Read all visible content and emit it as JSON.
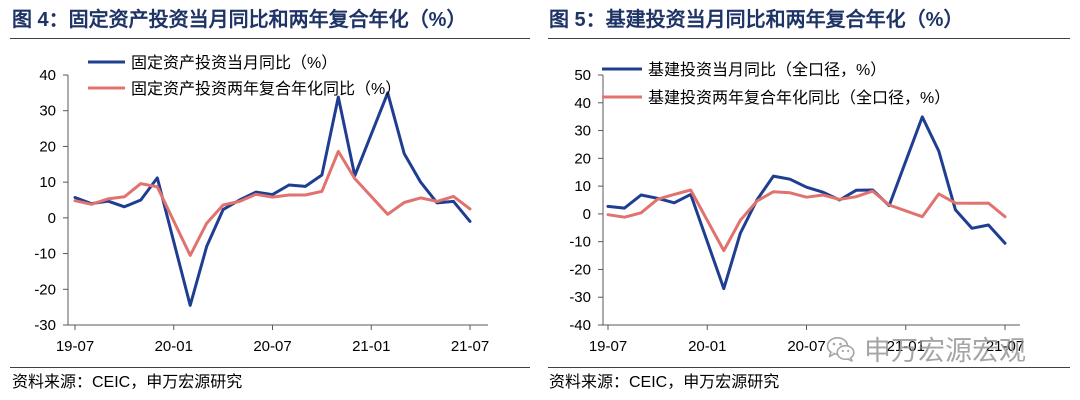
{
  "colors": {
    "title": "#1e3366",
    "axis": "#595959",
    "blue_series": "#1f3e92",
    "red_series": "#e1736f",
    "watermark": "#8c8c8c"
  },
  "chart_data": [
    {
      "type": "line",
      "title": "图 4：固定资产投资当月同比和两年复合年化（%）",
      "source": "资料来源：CEIC，申万宏源研究",
      "x": [
        "19-07",
        "19-08",
        "19-09",
        "19-10",
        "19-11",
        "19-12",
        "20-01",
        "20-02",
        "20-03",
        "20-04",
        "20-05",
        "20-06",
        "20-07",
        "20-08",
        "20-09",
        "20-10",
        "20-11",
        "20-12",
        "21-01",
        "21-02",
        "21-03",
        "21-04",
        "21-05",
        "21-06",
        "21-07"
      ],
      "x_tick_labels": [
        "19-07",
        "20-01",
        "20-07",
        "21-01",
        "21-07"
      ],
      "ylim": [
        -30,
        40
      ],
      "y_ticks": [
        40,
        30,
        20,
        10,
        0,
        -10,
        -20,
        -30
      ],
      "grid": false,
      "legend": "top-left",
      "series": [
        {
          "name": "固定资产投资当月同比（%）",
          "color": "#1f3e92",
          "values": [
            5.7,
            4.0,
            4.7,
            3.1,
            5.0,
            11.2,
            null,
            -24.5,
            -8.0,
            2.3,
            5.0,
            7.2,
            6.5,
            9.2,
            8.8,
            12.0,
            33.8,
            11.8,
            null,
            35.0,
            18.0,
            10.0,
            4.2,
            4.6,
            -1.0
          ]
        },
        {
          "name": "固定资产投资两年复合年化同比（%）",
          "color": "#e1736f",
          "values": [
            4.8,
            3.8,
            5.3,
            5.9,
            9.6,
            8.7,
            null,
            -10.5,
            -1.5,
            3.6,
            4.6,
            6.6,
            5.8,
            6.4,
            6.4,
            7.4,
            18.6,
            11.0,
            null,
            1.0,
            4.3,
            5.6,
            4.6,
            6.0,
            2.5
          ]
        }
      ]
    },
    {
      "type": "line",
      "title": "图 5：基建投资当月同比和两年复合年化（%）",
      "source": "资料来源：CEIC，申万宏源研究",
      "x": [
        "19-07",
        "19-08",
        "19-09",
        "19-10",
        "19-11",
        "19-12",
        "20-01",
        "20-02",
        "20-03",
        "20-04",
        "20-05",
        "20-06",
        "20-07",
        "20-08",
        "20-09",
        "20-10",
        "20-11",
        "20-12",
        "21-01",
        "21-02",
        "21-03",
        "21-04",
        "21-05",
        "21-06",
        "21-07"
      ],
      "x_tick_labels": [
        "19-07",
        "20-01",
        "20-07",
        "21-01",
        "21-07"
      ],
      "ylim": [
        -40,
        50
      ],
      "y_ticks": [
        50,
        40,
        30,
        20,
        10,
        0,
        -10,
        -20,
        -30,
        -40
      ],
      "grid": false,
      "legend": "top-left",
      "series": [
        {
          "name": "基建投资当月同比（全口径，%）",
          "color": "#1f3e92",
          "values": [
            2.7,
            2.1,
            6.8,
            5.6,
            4.0,
            7.0,
            null,
            -26.9,
            -7.0,
            5.0,
            13.6,
            12.5,
            9.6,
            7.8,
            5.0,
            8.5,
            8.6,
            3.0,
            null,
            34.9,
            22.6,
            1.5,
            -5.2,
            -4.0,
            -10.6
          ]
        },
        {
          "name": "基建投资两年复合年化同比（全口径，%）",
          "color": "#e1736f",
          "values": [
            -0.3,
            -1.2,
            0.4,
            5.3,
            7.0,
            8.6,
            null,
            -13.2,
            -2.3,
            4.6,
            8.0,
            7.6,
            6.0,
            6.8,
            5.2,
            6.2,
            8.2,
            3.2,
            null,
            -1.0,
            7.2,
            3.9,
            3.8,
            3.9,
            -1.0
          ]
        }
      ]
    }
  ],
  "watermark": {
    "icon": "wechat-icon",
    "text": "申万宏源宏观"
  }
}
